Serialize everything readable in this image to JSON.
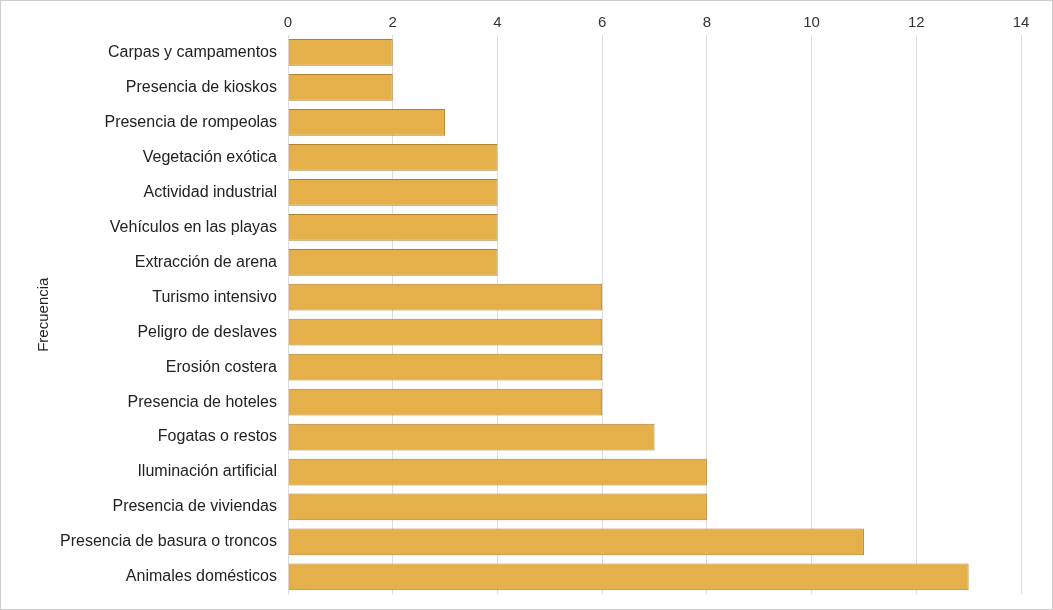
{
  "chart_data": {
    "type": "bar",
    "orientation": "horizontal",
    "ylabel": "Frecuencia",
    "categories": [
      "Carpas y campamentos",
      "Presencia de kioskos",
      "Presencia de rompeolas",
      "Vegetación exótica",
      "Actividad industrial",
      "Vehículos en las playas",
      "Extracción de arena",
      "Turismo intensivo",
      "Peligro de deslaves",
      "Erosión costera",
      "Presencia de hoteles",
      "Fogatas o restos",
      "Iluminación artificial",
      "Presencia de viviendas",
      "Presencia de basura o troncos",
      "Animales domésticos"
    ],
    "values": [
      2,
      2,
      3,
      4,
      4,
      4,
      4,
      6,
      6,
      6,
      6,
      7,
      8,
      8,
      11,
      13
    ],
    "color": "#e5b04a",
    "xlim": [
      0,
      14
    ],
    "xticks": [
      0,
      2,
      4,
      6,
      8,
      10,
      12,
      14
    ],
    "grid": "x",
    "legend": false
  }
}
